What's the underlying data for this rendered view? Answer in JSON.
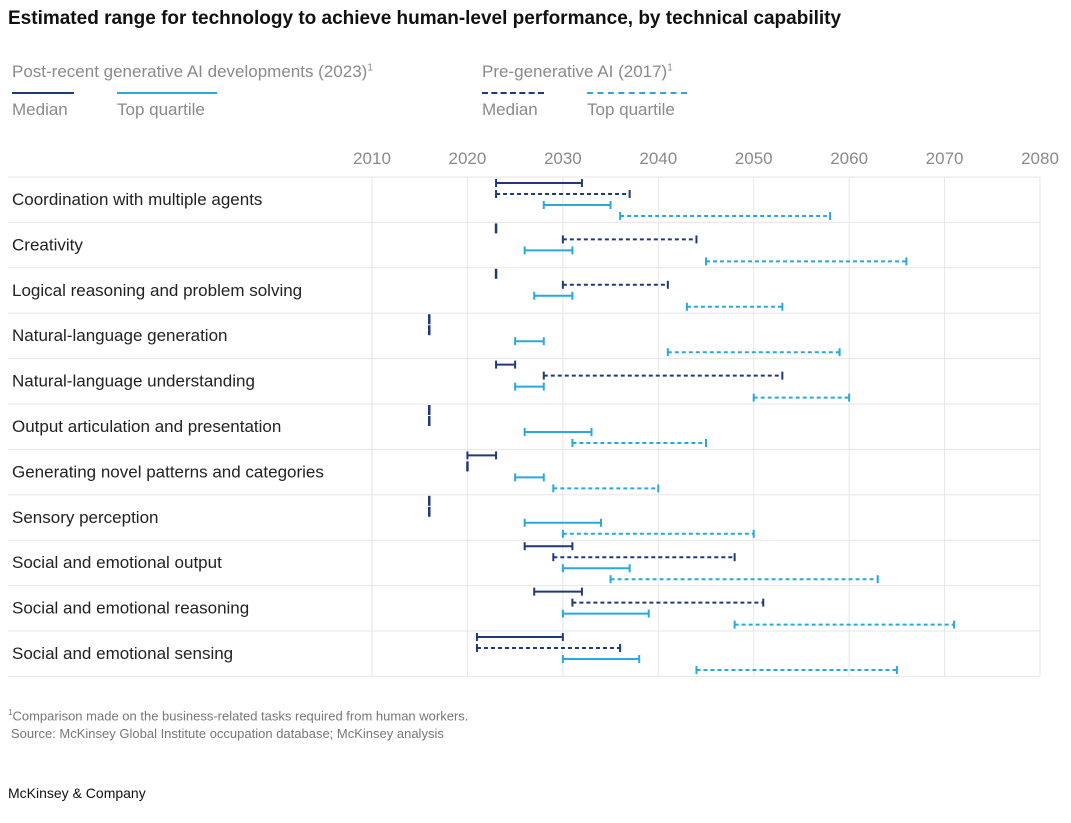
{
  "title": "Estimated range for technology to achieve human-level performance, by technical capability",
  "legend": {
    "post": {
      "title": "Post-recent generative AI developments (2023)",
      "sup": "1",
      "median": "Median",
      "quartile": "Top quartile"
    },
    "pre": {
      "title": "Pre-generative AI (2017)",
      "sup": "1",
      "median": "Median",
      "quartile": "Top quartile"
    }
  },
  "colors": {
    "dark": "#1f3a7a",
    "light": "#29a8e0",
    "grid": "#e6e6e6"
  },
  "chart_data": {
    "type": "range",
    "xlim": [
      2010,
      2080
    ],
    "xticks": [
      2010,
      2020,
      2030,
      2040,
      2050,
      2060,
      2070,
      2080
    ],
    "grid": true,
    "series": [
      {
        "name": "Post-recent generative AI developments (2023) Median",
        "style": "solid",
        "color": "#1f3a7a"
      },
      {
        "name": "Pre-generative AI (2017) Median",
        "style": "dashed",
        "color": "#1f3a7a"
      },
      {
        "name": "Post-recent generative AI developments (2023) Top quartile",
        "style": "solid",
        "color": "#29a8e0"
      },
      {
        "name": "Pre-generative AI (2017) Top quartile",
        "style": "dashed",
        "color": "#29a8e0"
      }
    ],
    "categories": [
      "Coordination with multiple agents",
      "Creativity",
      "Logical reasoning and problem solving",
      "Natural-language generation",
      "Natural-language understanding",
      "Output articulation and presentation",
      "Generating novel patterns and categories",
      "Sensory perception",
      "Social and emotional output",
      "Social and emotional reasoning",
      "Social and emotional sensing"
    ],
    "ranges": [
      [
        [
          2023,
          2032
        ],
        [
          2023,
          2037
        ],
        [
          2028,
          2035
        ],
        [
          2036,
          2058
        ]
      ],
      [
        [
          2023,
          2023
        ],
        [
          2030,
          2044
        ],
        [
          2026,
          2031
        ],
        [
          2045,
          2066
        ]
      ],
      [
        [
          2023,
          2023
        ],
        [
          2030,
          2041
        ],
        [
          2027,
          2031
        ],
        [
          2043,
          2053
        ]
      ],
      [
        [
          2016,
          2016
        ],
        [
          2016,
          2016
        ],
        [
          2025,
          2028
        ],
        [
          2041,
          2059
        ]
      ],
      [
        [
          2023,
          2025
        ],
        [
          2028,
          2053
        ],
        [
          2025,
          2028
        ],
        [
          2050,
          2060
        ]
      ],
      [
        [
          2016,
          2016
        ],
        [
          2016,
          2016
        ],
        [
          2026,
          2033
        ],
        [
          2031,
          2045
        ]
      ],
      [
        [
          2020,
          2023
        ],
        [
          2020,
          2020
        ],
        [
          2025,
          2028
        ],
        [
          2029,
          2040
        ]
      ],
      [
        [
          2016,
          2016
        ],
        [
          2016,
          2016
        ],
        [
          2026,
          2034
        ],
        [
          2030,
          2050
        ]
      ],
      [
        [
          2026,
          2031
        ],
        [
          2029,
          2048
        ],
        [
          2030,
          2037
        ],
        [
          2035,
          2063
        ]
      ],
      [
        [
          2027,
          2032
        ],
        [
          2031,
          2051
        ],
        [
          2030,
          2039
        ],
        [
          2048,
          2071
        ]
      ],
      [
        [
          2021,
          2030
        ],
        [
          2021,
          2036
        ],
        [
          2030,
          2038
        ],
        [
          2044,
          2065
        ]
      ]
    ]
  },
  "footnote": {
    "sup": "1",
    "text": "Comparison made on the business-related tasks required from human workers."
  },
  "source": "Source: McKinsey Global Institute occupation database; McKinsey analysis",
  "brand": "McKinsey & Company"
}
